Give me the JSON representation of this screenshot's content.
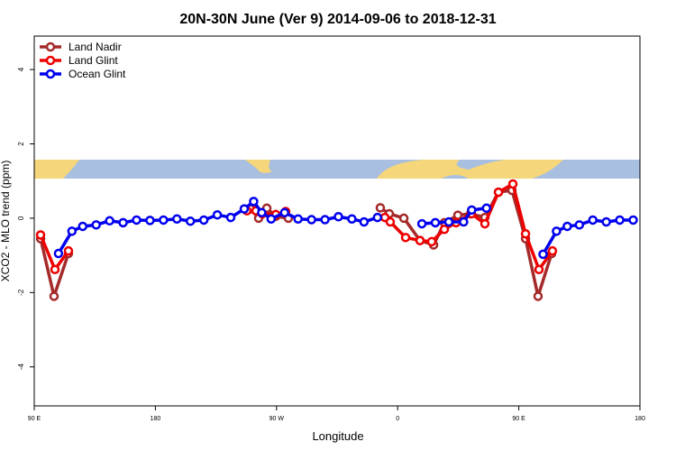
{
  "chart_data": {
    "type": "line",
    "title": "20N-30N June (Ver 9)   2014-09-06 to 2018-12-31",
    "xlabel": "Longitude",
    "ylabel": "XCO2 - MLO trend (ppm)",
    "xlim": [
      90,
      540
    ],
    "ylim": [
      -5.05,
      4.9
    ],
    "xticks": [
      {
        "value": 90,
        "label": "90 E"
      },
      {
        "value": 180,
        "label": "180"
      },
      {
        "value": 270,
        "label": "90 W"
      },
      {
        "value": 360,
        "label": "0"
      },
      {
        "value": 450,
        "label": "90 E"
      },
      {
        "value": 540,
        "label": "180"
      }
    ],
    "yticks": [
      -4,
      -2,
      0,
      2,
      4
    ],
    "legend": "top-left",
    "series": [
      {
        "name": "Land Nadir",
        "color": "#a52a2a",
        "x": [
          94.7,
          104.7,
          115.4,
          null,
          250.7,
          256.7,
          262.8,
          269.5,
          278.8,
          null,
          347.1,
          353.8,
          364.6,
          376.6,
          386.7,
          394.7,
          404.7,
          414.1,
          424.8,
          434.9,
          444.9,
          455,
          464.3,
          474.4
        ],
        "values": [
          -0.55,
          -2.1,
          -0.95,
          null,
          0.25,
          0.0,
          0.27,
          0.05,
          0.0,
          null,
          0.28,
          0.12,
          0.0,
          -0.6,
          -0.72,
          -0.12,
          0.08,
          0.12,
          0.02,
          0.7,
          0.75,
          -0.55,
          -2.1,
          -0.95
        ]
      },
      {
        "name": "Land Glint",
        "color": "#ee0000",
        "x": [
          94.7,
          105.4,
          115.4,
          null,
          248,
          254.7,
          259.4,
          269.5,
          276.8,
          null,
          350.5,
          354.5,
          365.9,
          376.6,
          385.3,
          394.7,
          403.4,
          414.8,
          424.8,
          434.9,
          445.6,
          455,
          465,
          475
        ],
        "values": [
          -0.45,
          -1.38,
          -0.88,
          null,
          0.2,
          0.2,
          0.12,
          0.1,
          0.18,
          null,
          0.02,
          -0.1,
          -0.52,
          -0.6,
          -0.63,
          -0.3,
          -0.12,
          0.12,
          -0.15,
          0.7,
          0.92,
          -0.42,
          -1.38,
          -0.88
        ]
      },
      {
        "name": "Ocean Glint",
        "color": "#0000ee",
        "x": [
          108,
          118,
          126,
          136,
          146,
          156,
          166,
          176,
          186,
          196,
          206,
          216,
          226,
          236,
          246,
          253,
          259,
          266,
          276,
          286,
          296,
          306,
          316,
          326,
          335,
          345,
          null,
          378,
          388,
          398,
          409,
          415,
          426,
          null,
          468,
          478,
          486,
          495,
          505,
          515,
          525,
          535
        ],
        "values": [
          -0.95,
          -0.35,
          -0.22,
          -0.18,
          -0.07,
          -0.12,
          -0.05,
          -0.06,
          -0.05,
          -0.02,
          -0.08,
          -0.05,
          0.09,
          0.02,
          0.25,
          0.45,
          0.15,
          -0.02,
          0.15,
          -0.02,
          -0.04,
          -0.04,
          0.04,
          -0.02,
          -0.1,
          0.02,
          null,
          -0.15,
          -0.12,
          -0.1,
          -0.1,
          0.22,
          0.27,
          null,
          -0.97,
          -0.35,
          -0.22,
          -0.18,
          -0.05,
          -0.1,
          -0.05,
          -0.05
        ]
      }
    ]
  }
}
